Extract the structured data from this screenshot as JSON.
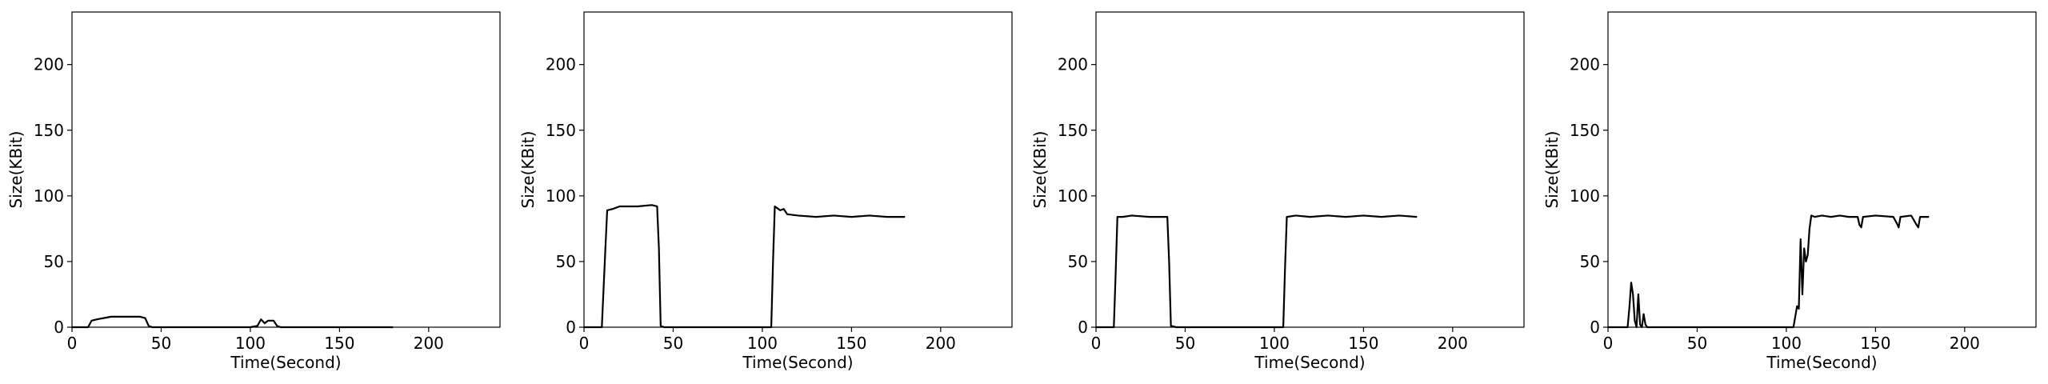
{
  "chart_data": [
    {
      "type": "line",
      "xlabel": "Time(Second)",
      "ylabel": "Size(KBit)",
      "xlim": [
        0,
        240
      ],
      "ylim": [
        0,
        240
      ],
      "xticks": [
        0,
        50,
        100,
        150,
        200
      ],
      "yticks": [
        0,
        50,
        100,
        150,
        200
      ],
      "grid": false,
      "series": [
        {
          "color": "#000000",
          "points": [
            [
              0,
              0
            ],
            [
              9,
              0
            ],
            [
              11,
              5
            ],
            [
              14,
              6
            ],
            [
              18,
              7
            ],
            [
              22,
              8
            ],
            [
              30,
              8
            ],
            [
              38,
              8
            ],
            [
              41,
              7
            ],
            [
              43,
              1
            ],
            [
              45,
              0
            ],
            [
              60,
              0
            ],
            [
              80,
              0
            ],
            [
              100,
              0
            ],
            [
              104,
              1
            ],
            [
              106,
              6
            ],
            [
              108,
              3
            ],
            [
              110,
              5
            ],
            [
              113,
              5
            ],
            [
              115,
              1
            ],
            [
              117,
              0
            ],
            [
              140,
              0
            ],
            [
              160,
              0
            ],
            [
              175,
              0
            ],
            [
              180,
              0
            ]
          ]
        }
      ]
    },
    {
      "type": "line",
      "xlabel": "Time(Second)",
      "ylabel": "Size(KBit)",
      "xlim": [
        0,
        240
      ],
      "ylim": [
        0,
        240
      ],
      "xticks": [
        0,
        50,
        100,
        150,
        200
      ],
      "yticks": [
        0,
        50,
        100,
        150,
        200
      ],
      "grid": false,
      "series": [
        {
          "color": "#000000",
          "points": [
            [
              0,
              0
            ],
            [
              10,
              0
            ],
            [
              12,
              60
            ],
            [
              13,
              89
            ],
            [
              16,
              90
            ],
            [
              20,
              92
            ],
            [
              30,
              92
            ],
            [
              38,
              93
            ],
            [
              41,
              92
            ],
            [
              42,
              60
            ],
            [
              43,
              1
            ],
            [
              45,
              0
            ],
            [
              60,
              0
            ],
            [
              80,
              0
            ],
            [
              100,
              0
            ],
            [
              105,
              0
            ],
            [
              106,
              50
            ],
            [
              107,
              92
            ],
            [
              110,
              89
            ],
            [
              112,
              90
            ],
            [
              114,
              86
            ],
            [
              120,
              85
            ],
            [
              130,
              84
            ],
            [
              140,
              85
            ],
            [
              150,
              84
            ],
            [
              160,
              85
            ],
            [
              170,
              84
            ],
            [
              180,
              84
            ]
          ]
        }
      ]
    },
    {
      "type": "line",
      "xlabel": "Time(Second)",
      "ylabel": "Size(KBit)",
      "xlim": [
        0,
        240
      ],
      "ylim": [
        0,
        240
      ],
      "xticks": [
        0,
        50,
        100,
        150,
        200
      ],
      "yticks": [
        0,
        50,
        100,
        150,
        200
      ],
      "grid": false,
      "series": [
        {
          "color": "#000000",
          "points": [
            [
              0,
              0
            ],
            [
              10,
              0
            ],
            [
              11,
              40
            ],
            [
              12,
              84
            ],
            [
              15,
              84
            ],
            [
              20,
              85
            ],
            [
              30,
              84
            ],
            [
              40,
              84
            ],
            [
              41,
              50
            ],
            [
              42,
              1
            ],
            [
              45,
              0
            ],
            [
              60,
              0
            ],
            [
              80,
              0
            ],
            [
              100,
              0
            ],
            [
              105,
              0
            ],
            [
              106,
              45
            ],
            [
              107,
              84
            ],
            [
              112,
              85
            ],
            [
              120,
              84
            ],
            [
              130,
              85
            ],
            [
              140,
              84
            ],
            [
              150,
              85
            ],
            [
              160,
              84
            ],
            [
              170,
              85
            ],
            [
              180,
              84
            ]
          ]
        }
      ]
    },
    {
      "type": "line",
      "xlabel": "Time(Second)",
      "ylabel": "Size(KBit)",
      "xlim": [
        0,
        240
      ],
      "ylim": [
        0,
        240
      ],
      "xticks": [
        0,
        50,
        100,
        150,
        200
      ],
      "yticks": [
        0,
        50,
        100,
        150,
        200
      ],
      "grid": false,
      "series": [
        {
          "color": "#000000",
          "points": [
            [
              0,
              0
            ],
            [
              11,
              0
            ],
            [
              12,
              15
            ],
            [
              13,
              34
            ],
            [
              14,
              25
            ],
            [
              15,
              5
            ],
            [
              16,
              0
            ],
            [
              17,
              25
            ],
            [
              18,
              2
            ],
            [
              19,
              0
            ],
            [
              20,
              10
            ],
            [
              21,
              2
            ],
            [
              22,
              0
            ],
            [
              40,
              0
            ],
            [
              60,
              0
            ],
            [
              80,
              0
            ],
            [
              100,
              0
            ],
            [
              104,
              0
            ],
            [
              106,
              16
            ],
            [
              107,
              14
            ],
            [
              108,
              67
            ],
            [
              109,
              25
            ],
            [
              110,
              60
            ],
            [
              111,
              50
            ],
            [
              112,
              55
            ],
            [
              113,
              75
            ],
            [
              114,
              85
            ],
            [
              116,
              84
            ],
            [
              120,
              85
            ],
            [
              125,
              84
            ],
            [
              130,
              85
            ],
            [
              135,
              84
            ],
            [
              140,
              84
            ],
            [
              141,
              78
            ],
            [
              142,
              76
            ],
            [
              143,
              84
            ],
            [
              150,
              85
            ],
            [
              160,
              84
            ],
            [
              162,
              79
            ],
            [
              163,
              76
            ],
            [
              164,
              84
            ],
            [
              170,
              85
            ],
            [
              173,
              78
            ],
            [
              174,
              76
            ],
            [
              175,
              84
            ],
            [
              180,
              84
            ]
          ]
        }
      ]
    }
  ]
}
